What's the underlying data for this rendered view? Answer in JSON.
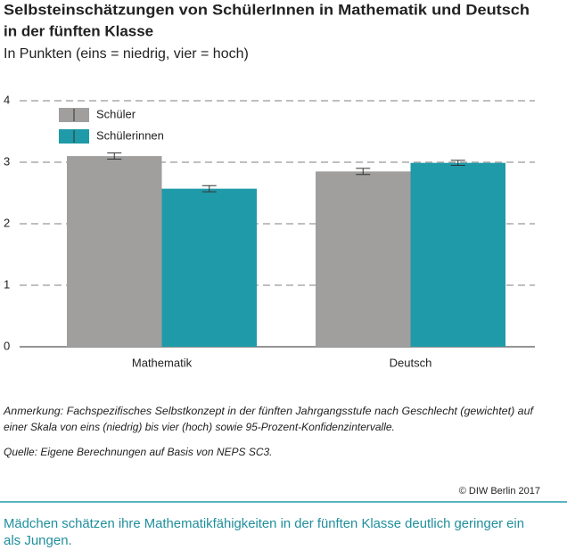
{
  "chart_data": {
    "type": "bar",
    "title": [
      "Selbsteinschätzungen von SchülerInnen in Mathematik und Deutsch",
      "in der fünften Klasse"
    ],
    "subtitle": "In Punkten (eins = niedrig, vier = hoch)",
    "categories": [
      "Mathematik",
      "Deutsch"
    ],
    "series": [
      {
        "name": "Schüler",
        "color": "#a09f9e",
        "values": [
          3.1,
          2.85
        ],
        "errors": [
          0.05,
          0.05
        ]
      },
      {
        "name": "Schülerinnen",
        "color": "#1f9aa8",
        "values": [
          2.57,
          2.99
        ],
        "errors": [
          0.05,
          0.04
        ]
      }
    ],
    "ylim": [
      0,
      4
    ],
    "yticks": [
      0,
      1,
      2,
      3,
      4
    ],
    "grid": true,
    "legend": "top-left",
    "note": [
      "Anmerkung: Fachspezifisches Selbstkonzept in der fünften Jahrgangsstufe nach Geschlecht (gewichtet) auf",
      "einer Skala von eins (niedrig) bis vier (hoch) sowie 95-Prozent-Konfidenzintervalle."
    ],
    "source": "Quelle: Eigene Berechnungen auf Basis von NEPS SC3.",
    "copyright": "© DIW Berlin 2017",
    "caption": [
      "Mädchen schätzen ihre Mathematikfähigkeiten in der fünften Klasse deutlich geringer ein",
      "als Jungen."
    ]
  }
}
